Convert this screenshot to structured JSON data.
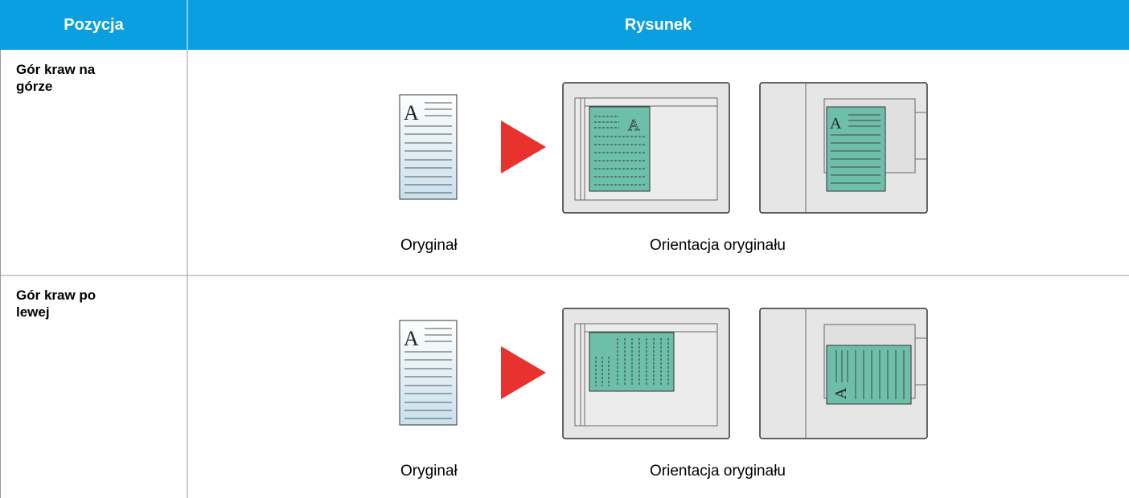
{
  "header": {
    "col1": "Pozycja",
    "col2": "Rysunek"
  },
  "rows": [
    {
      "label": "Gór kraw na górze",
      "caption_original": "Oryginał",
      "caption_orientation": "Orientacja oryginału"
    },
    {
      "label": "Gór kraw po lewej",
      "caption_original": "Oryginał",
      "caption_orientation": "Orientacja oryginału"
    }
  ]
}
